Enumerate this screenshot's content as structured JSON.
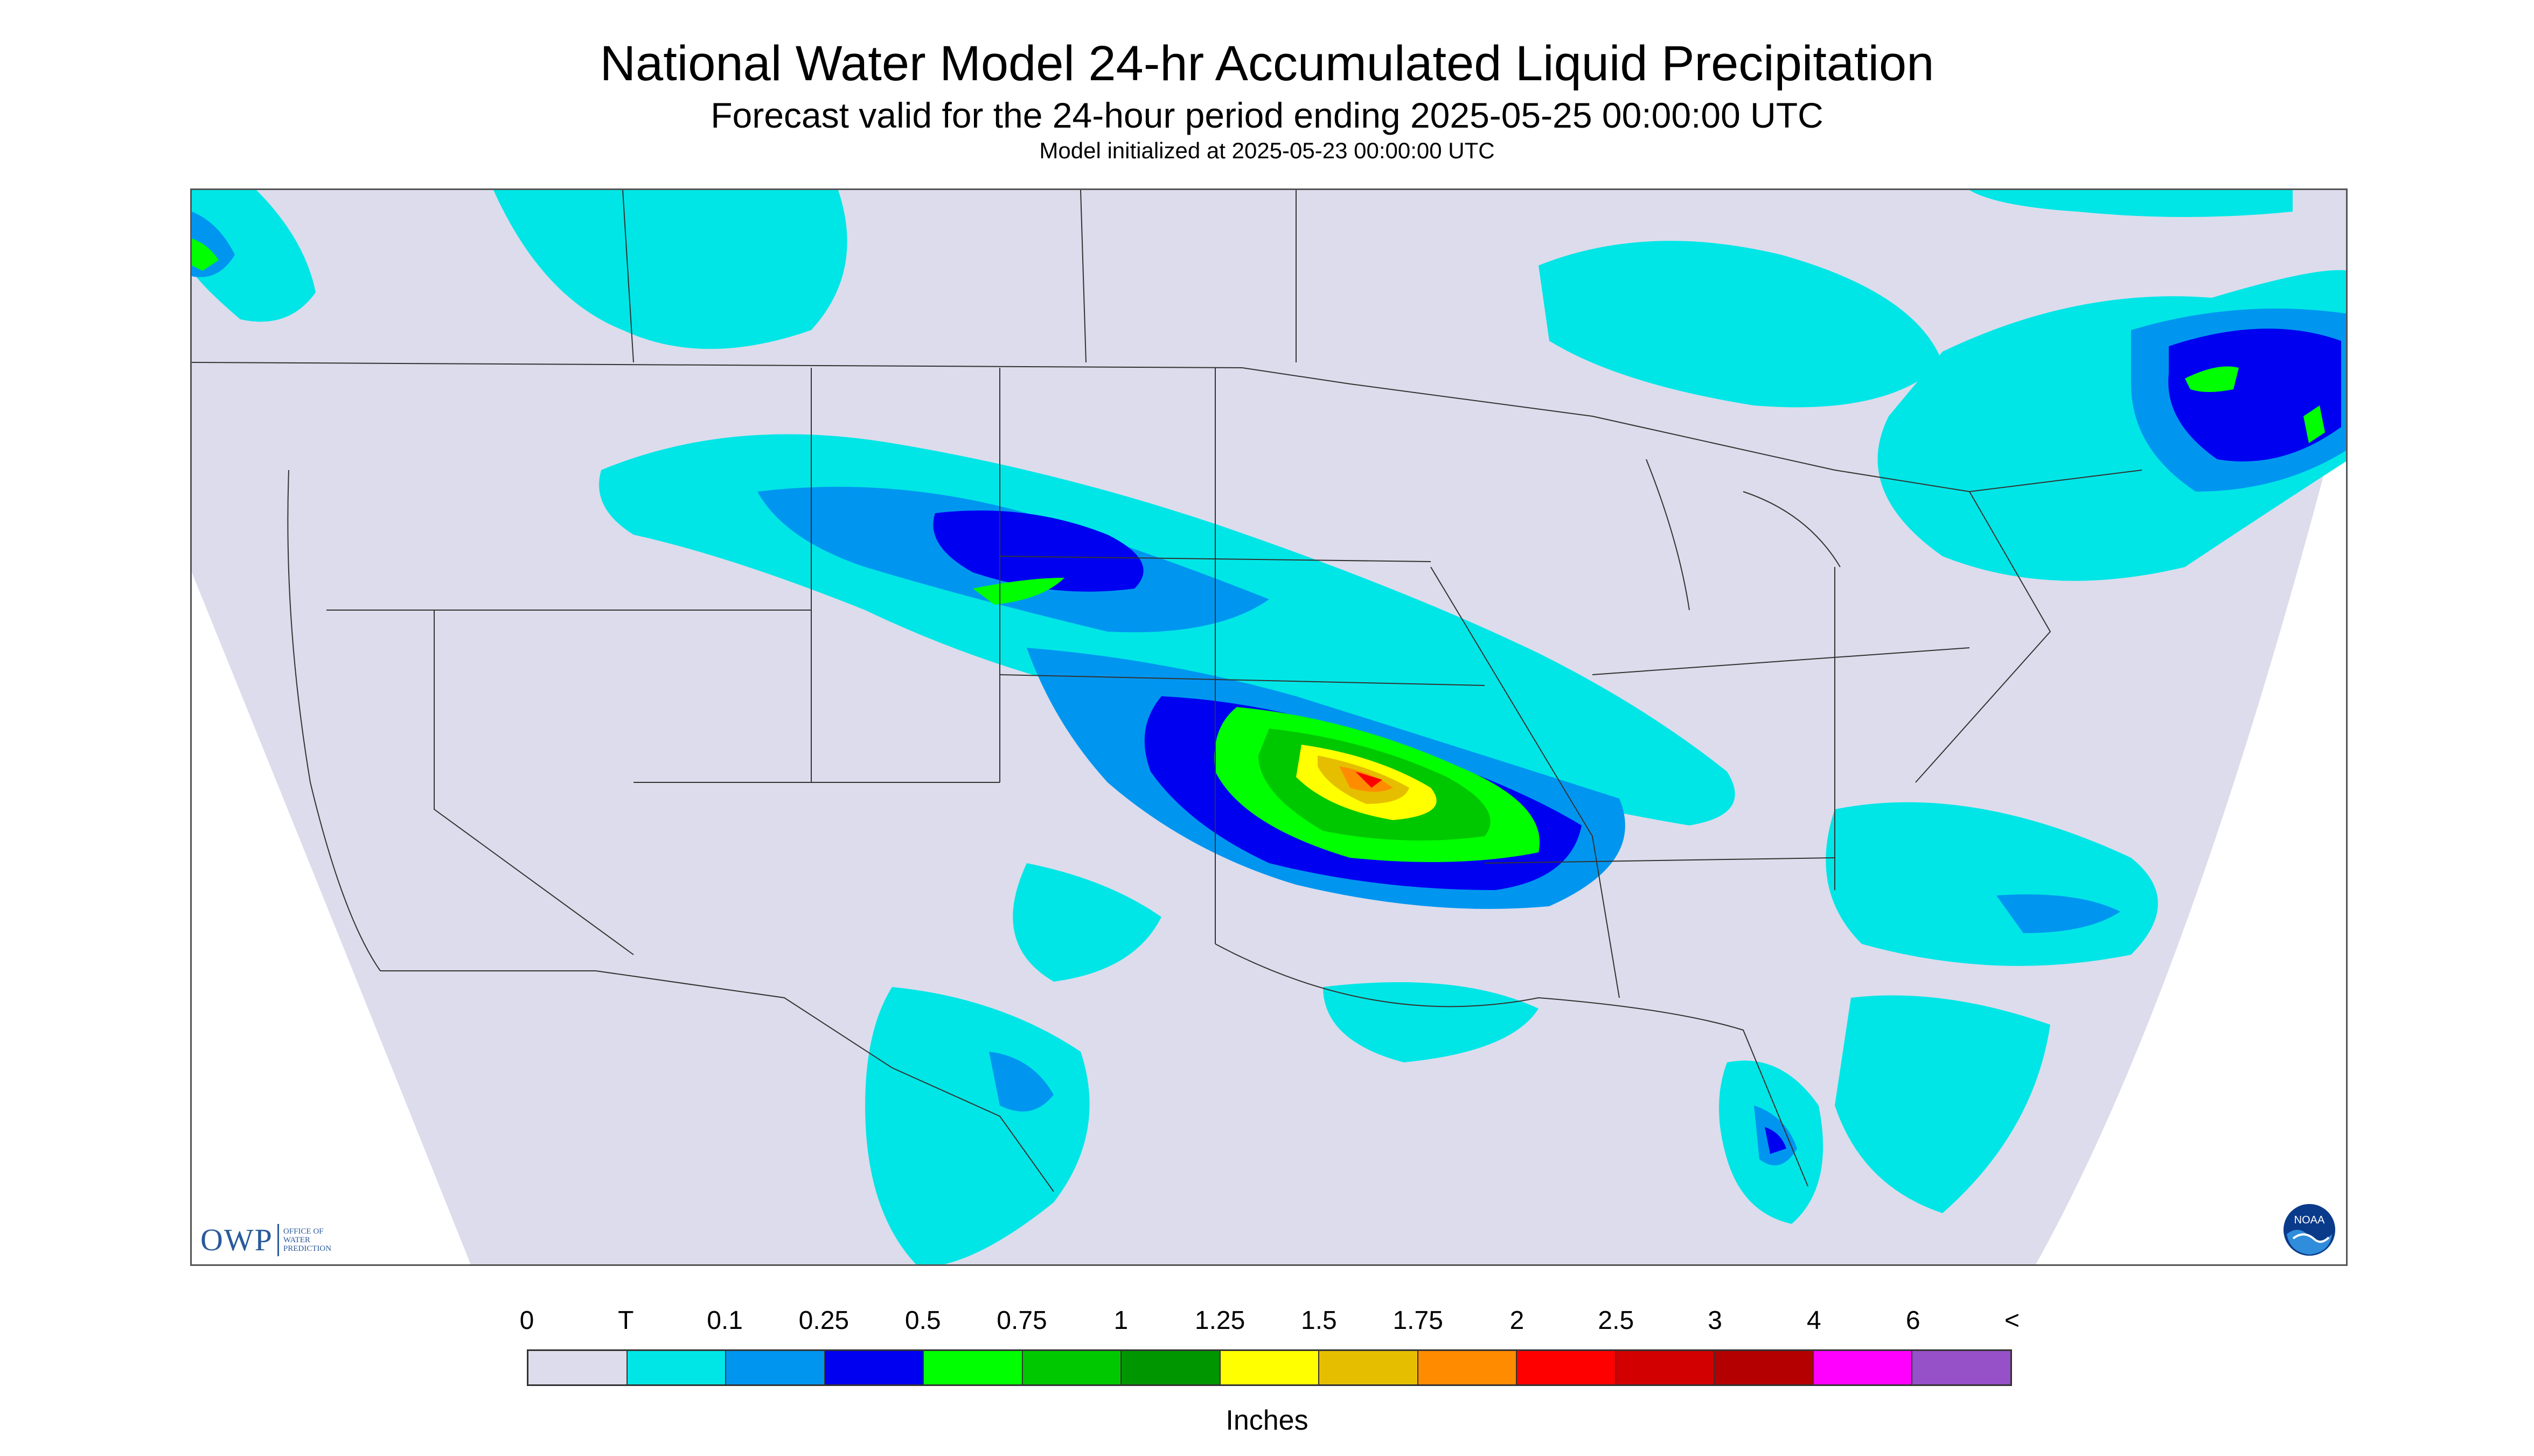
{
  "title": "National Water Model 24-hr Accumulated Liquid Precipitation",
  "subtitle": "Forecast valid for the 24-hour period ending 2025-05-25 00:00:00 UTC",
  "init_line": "Model initialized at 2025-05-23 00:00:00 UTC",
  "logos": {
    "owp_mark": "OWP",
    "owp_text": [
      "OFFICE OF",
      "WATER",
      "PREDICTION"
    ],
    "noaa": "NOAA"
  },
  "colorbar": {
    "labels": [
      "0",
      "T",
      "0.1",
      "0.25",
      "0.5",
      "0.75",
      "1",
      "1.25",
      "1.5",
      "1.75",
      "2",
      "2.5",
      "3",
      "4",
      "6",
      "<"
    ],
    "colors": [
      "#dcdcec",
      "#00e6e6",
      "#0096f0",
      "#0000f0",
      "#00ff00",
      "#00c800",
      "#009600",
      "#ffff00",
      "#e6be00",
      "#ff8c00",
      "#ff0000",
      "#d20000",
      "#b40000",
      "#ff00ff",
      "#9650c8"
    ],
    "units": "Inches"
  },
  "map": {
    "background": "#dcdcec",
    "outside": "#ffffff",
    "boundary_color": "#333333"
  }
}
